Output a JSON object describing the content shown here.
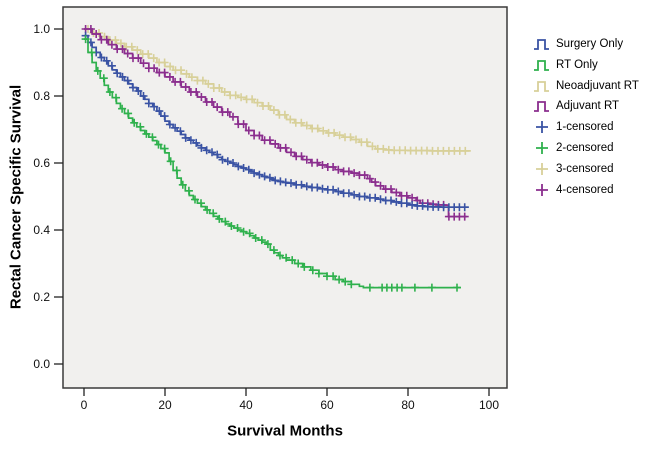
{
  "chart_data": {
    "type": "line",
    "subtype": "kaplan-meier-step",
    "title": "",
    "xlabel": "Survival Months",
    "ylabel": "Rectal Cancer Specific Survival",
    "x_ticks": [
      0,
      20,
      40,
      60,
      80,
      100
    ],
    "x_tick_labels": [
      "0",
      "20",
      "40",
      "60",
      "80",
      "100"
    ],
    "y_ticks": [
      0.0,
      0.2,
      0.4,
      0.6,
      0.8,
      1.0
    ],
    "y_tick_labels": [
      "0.0",
      "0.2",
      "0.4",
      "0.6",
      "0.8",
      "1.0"
    ],
    "xlim": [
      0,
      100
    ],
    "ylim": [
      0.0,
      1.0
    ],
    "grid": false,
    "legend_position": "right-outside",
    "plot_bg": "#f1f0ee",
    "border_color": "#3a3a3a",
    "series": [
      {
        "name": "Surgery Only",
        "color": "#3a53a4",
        "points": [
          [
            0,
            0.98
          ],
          [
            1,
            0.96
          ],
          [
            2,
            0.945
          ],
          [
            3,
            0.93
          ],
          [
            4,
            0.915
          ],
          [
            5,
            0.905
          ],
          [
            6,
            0.89
          ],
          [
            7,
            0.878
          ],
          [
            8,
            0.868
          ],
          [
            9,
            0.857
          ],
          [
            10,
            0.846
          ],
          [
            11,
            0.836
          ],
          [
            12,
            0.825
          ],
          [
            13,
            0.815
          ],
          [
            14,
            0.8
          ],
          [
            15,
            0.79
          ],
          [
            16,
            0.778
          ],
          [
            17,
            0.768
          ],
          [
            18,
            0.755
          ],
          [
            19,
            0.74
          ],
          [
            20,
            0.725
          ],
          [
            21,
            0.715
          ],
          [
            22,
            0.705
          ],
          [
            23,
            0.695
          ],
          [
            24,
            0.685
          ],
          [
            25,
            0.675
          ],
          [
            26,
            0.668
          ],
          [
            27,
            0.66
          ],
          [
            28,
            0.652
          ],
          [
            29,
            0.645
          ],
          [
            30,
            0.638
          ],
          [
            31,
            0.632
          ],
          [
            32,
            0.625
          ],
          [
            33,
            0.617
          ],
          [
            34,
            0.61
          ],
          [
            35,
            0.605
          ],
          [
            36,
            0.6
          ],
          [
            37,
            0.595
          ],
          [
            38,
            0.59
          ],
          [
            39,
            0.585
          ],
          [
            40,
            0.58
          ],
          [
            41,
            0.575
          ],
          [
            42,
            0.57
          ],
          [
            43,
            0.565
          ],
          [
            44,
            0.56
          ],
          [
            45,
            0.556
          ],
          [
            46,
            0.552
          ],
          [
            47,
            0.548
          ],
          [
            48,
            0.545
          ],
          [
            49,
            0.542
          ],
          [
            50,
            0.54
          ],
          [
            52,
            0.535
          ],
          [
            54,
            0.53
          ],
          [
            56,
            0.527
          ],
          [
            58,
            0.523
          ],
          [
            60,
            0.52
          ],
          [
            62,
            0.515
          ],
          [
            64,
            0.51
          ],
          [
            66,
            0.505
          ],
          [
            68,
            0.5
          ],
          [
            70,
            0.496
          ],
          [
            72,
            0.492
          ],
          [
            74,
            0.488
          ],
          [
            76,
            0.484
          ],
          [
            78,
            0.48
          ],
          [
            80,
            0.475
          ],
          [
            82,
            0.472
          ],
          [
            84,
            0.47
          ],
          [
            86,
            0.469
          ],
          [
            88,
            0.468
          ],
          [
            95,
            0.468
          ]
        ],
        "censor": {
          "start": 0.4,
          "end": 95,
          "step": 1.3
        },
        "censor_extra": []
      },
      {
        "name": "RT Only",
        "color": "#2fb14d",
        "points": [
          [
            0,
            0.97
          ],
          [
            1,
            0.93
          ],
          [
            2,
            0.9
          ],
          [
            3,
            0.875
          ],
          [
            4,
            0.853
          ],
          [
            5,
            0.832
          ],
          [
            6,
            0.812
          ],
          [
            7,
            0.795
          ],
          [
            8,
            0.778
          ],
          [
            9,
            0.762
          ],
          [
            10,
            0.748
          ],
          [
            11,
            0.734
          ],
          [
            12,
            0.72
          ],
          [
            13,
            0.708
          ],
          [
            14,
            0.697
          ],
          [
            15,
            0.687
          ],
          [
            16,
            0.677
          ],
          [
            17,
            0.667
          ],
          [
            18,
            0.655
          ],
          [
            19,
            0.643
          ],
          [
            20,
            0.63
          ],
          [
            21,
            0.605
          ],
          [
            22,
            0.578
          ],
          [
            23,
            0.555
          ],
          [
            24,
            0.535
          ],
          [
            25,
            0.517
          ],
          [
            26,
            0.503
          ],
          [
            27,
            0.491
          ],
          [
            28,
            0.48
          ],
          [
            29,
            0.47
          ],
          [
            30,
            0.46
          ],
          [
            31,
            0.45
          ],
          [
            32,
            0.441
          ],
          [
            33,
            0.433
          ],
          [
            34,
            0.425
          ],
          [
            35,
            0.418
          ],
          [
            36,
            0.412
          ],
          [
            37,
            0.406
          ],
          [
            38,
            0.4
          ],
          [
            39,
            0.395
          ],
          [
            40,
            0.39
          ],
          [
            41,
            0.383
          ],
          [
            42,
            0.376
          ],
          [
            43,
            0.37
          ],
          [
            44,
            0.364
          ],
          [
            45,
            0.358
          ],
          [
            46,
            0.34
          ],
          [
            47,
            0.332
          ],
          [
            48,
            0.324
          ],
          [
            49,
            0.317
          ],
          [
            50,
            0.31
          ],
          [
            52,
            0.3
          ],
          [
            54,
            0.29
          ],
          [
            56,
            0.28
          ],
          [
            58,
            0.27
          ],
          [
            60,
            0.262
          ],
          [
            62,
            0.252
          ],
          [
            64,
            0.246
          ],
          [
            66,
            0.238
          ],
          [
            68,
            0.232
          ],
          [
            69,
            0.228
          ],
          [
            93,
            0.228
          ]
        ],
        "censor": {
          "start": 0.4,
          "end": 55,
          "step": 1.5
        },
        "censor_extra": [
          56.5,
          58,
          60,
          61.5,
          63,
          64.5,
          66,
          70.6,
          73.6,
          74.8,
          76,
          77.3,
          78.5,
          81.7,
          85.9,
          92.1
        ]
      },
      {
        "name": "Neoadjuvant RT",
        "color": "#d8d099",
        "points": [
          [
            0,
            1.0
          ],
          [
            2,
            0.988
          ],
          [
            4,
            0.977
          ],
          [
            6,
            0.967
          ],
          [
            8,
            0.957
          ],
          [
            10,
            0.947
          ],
          [
            12,
            0.937
          ],
          [
            14,
            0.925
          ],
          [
            16,
            0.913
          ],
          [
            18,
            0.9
          ],
          [
            20,
            0.888
          ],
          [
            22,
            0.877
          ],
          [
            24,
            0.866
          ],
          [
            26,
            0.856
          ],
          [
            28,
            0.846
          ],
          [
            30,
            0.836
          ],
          [
            32,
            0.824
          ],
          [
            34,
            0.812
          ],
          [
            36,
            0.802
          ],
          [
            38,
            0.796
          ],
          [
            40,
            0.79
          ],
          [
            42,
            0.78
          ],
          [
            44,
            0.77
          ],
          [
            46,
            0.758
          ],
          [
            48,
            0.744
          ],
          [
            50,
            0.73
          ],
          [
            52,
            0.72
          ],
          [
            54,
            0.712
          ],
          [
            56,
            0.703
          ],
          [
            58,
            0.696
          ],
          [
            60,
            0.69
          ],
          [
            62,
            0.683
          ],
          [
            64,
            0.677
          ],
          [
            66,
            0.67
          ],
          [
            68,
            0.662
          ],
          [
            70,
            0.65
          ],
          [
            72,
            0.642
          ],
          [
            74,
            0.639
          ],
          [
            76,
            0.638
          ],
          [
            80,
            0.637
          ],
          [
            86,
            0.636
          ],
          [
            95.5,
            0.636
          ]
        ],
        "censor": {
          "start": 1.0,
          "end": 95.4,
          "step": 1.35
        },
        "censor_extra": []
      },
      {
        "name": "Adjuvant RT",
        "color": "#8b2e8e",
        "points": [
          [
            0,
            1.0
          ],
          [
            2,
            0.985
          ],
          [
            4,
            0.968
          ],
          [
            6,
            0.953
          ],
          [
            8,
            0.94
          ],
          [
            10,
            0.927
          ],
          [
            12,
            0.913
          ],
          [
            14,
            0.898
          ],
          [
            16,
            0.883
          ],
          [
            18,
            0.87
          ],
          [
            20,
            0.857
          ],
          [
            22,
            0.842
          ],
          [
            24,
            0.827
          ],
          [
            26,
            0.812
          ],
          [
            28,
            0.797
          ],
          [
            30,
            0.782
          ],
          [
            32,
            0.767
          ],
          [
            34,
            0.752
          ],
          [
            36,
            0.738
          ],
          [
            38,
            0.716
          ],
          [
            40,
            0.697
          ],
          [
            42,
            0.682
          ],
          [
            44,
            0.668
          ],
          [
            46,
            0.657
          ],
          [
            48,
            0.645
          ],
          [
            50,
            0.632
          ],
          [
            52,
            0.62
          ],
          [
            54,
            0.61
          ],
          [
            56,
            0.601
          ],
          [
            58,
            0.594
          ],
          [
            60,
            0.588
          ],
          [
            62,
            0.58
          ],
          [
            64,
            0.575
          ],
          [
            66,
            0.57
          ],
          [
            68,
            0.564
          ],
          [
            70,
            0.553
          ],
          [
            71,
            0.543
          ],
          [
            72,
            0.532
          ],
          [
            74,
            0.522
          ],
          [
            76,
            0.512
          ],
          [
            78,
            0.502
          ],
          [
            80,
            0.496
          ],
          [
            82,
            0.488
          ],
          [
            83,
            0.48
          ],
          [
            85,
            0.477
          ],
          [
            87,
            0.475
          ],
          [
            89,
            0.474
          ],
          [
            90,
            0.44
          ],
          [
            94.5,
            0.44
          ]
        ],
        "censor": {
          "start": 0.4,
          "end": 94.3,
          "step": 1.3
        },
        "censor_extra": []
      }
    ],
    "draw_order": [
      2,
      3,
      0,
      1
    ],
    "legend": {
      "items": [
        {
          "label": "Surgery Only",
          "glyph": "step",
          "color": "#3a53a4"
        },
        {
          "label": "RT Only",
          "glyph": "step",
          "color": "#2fb14d"
        },
        {
          "label": "Neoadjuvant RT",
          "glyph": "step",
          "color": "#d8d099"
        },
        {
          "label": "Adjuvant RT",
          "glyph": "step",
          "color": "#8b2e8e"
        },
        {
          "label": "1-censored",
          "glyph": "plus",
          "color": "#3a53a4"
        },
        {
          "label": "2-censored",
          "glyph": "plus",
          "color": "#2fb14d"
        },
        {
          "label": "3-censored",
          "glyph": "plus",
          "color": "#d8d099"
        },
        {
          "label": "4-censored",
          "glyph": "plus",
          "color": "#8b2e8e"
        }
      ]
    }
  }
}
